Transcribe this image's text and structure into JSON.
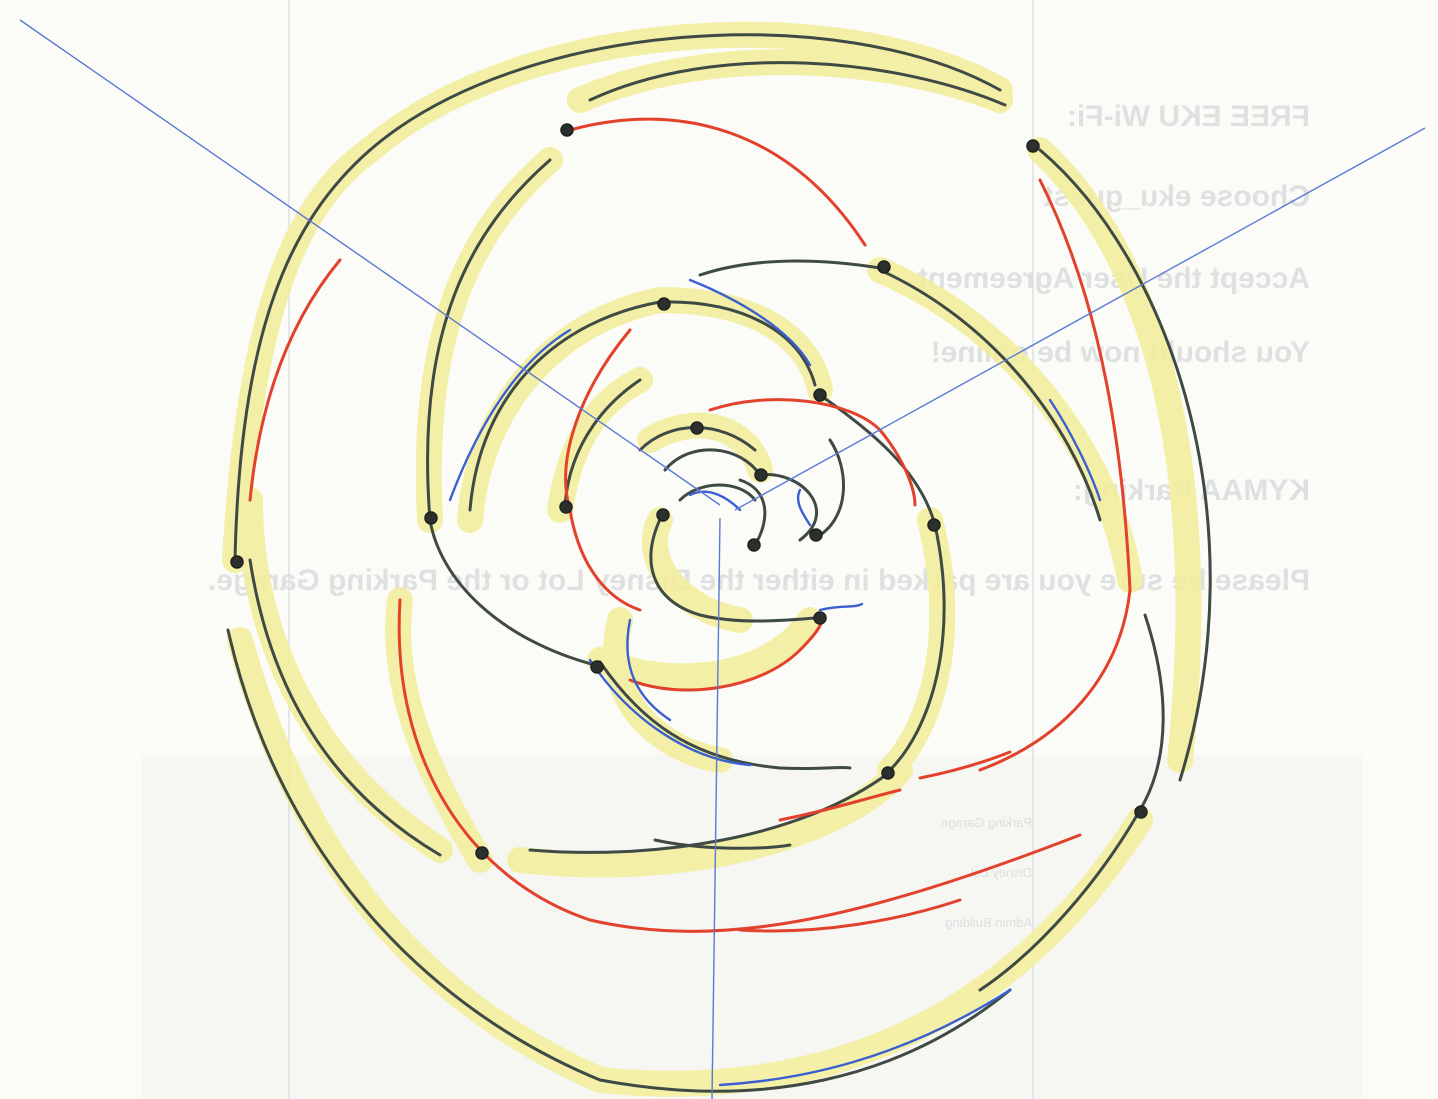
{
  "bleed_through_text": {
    "line1": "FREE EKU Wi-Fi:",
    "line2": "Choose eku_guest",
    "line3": "Accept the User Agreement",
    "line4": "You should now be online!",
    "line5": "KYMAA Parking:",
    "line6": "Please be sure you are parked in either the Disney Lot or the Parking Garage."
  },
  "map_labels": {
    "a": "Parking Garage",
    "b": "Disney Lot",
    "c": "Admin Building"
  },
  "colors": {
    "paper": "#fbfbf8",
    "highlighter": "#f3ee9a",
    "pencil_dark": "#3f4a44",
    "pencil_red": "#e2412b",
    "pencil_blue": "#3a5fd0",
    "dot": "#2c302d",
    "guide_line": "#c9ced6"
  }
}
